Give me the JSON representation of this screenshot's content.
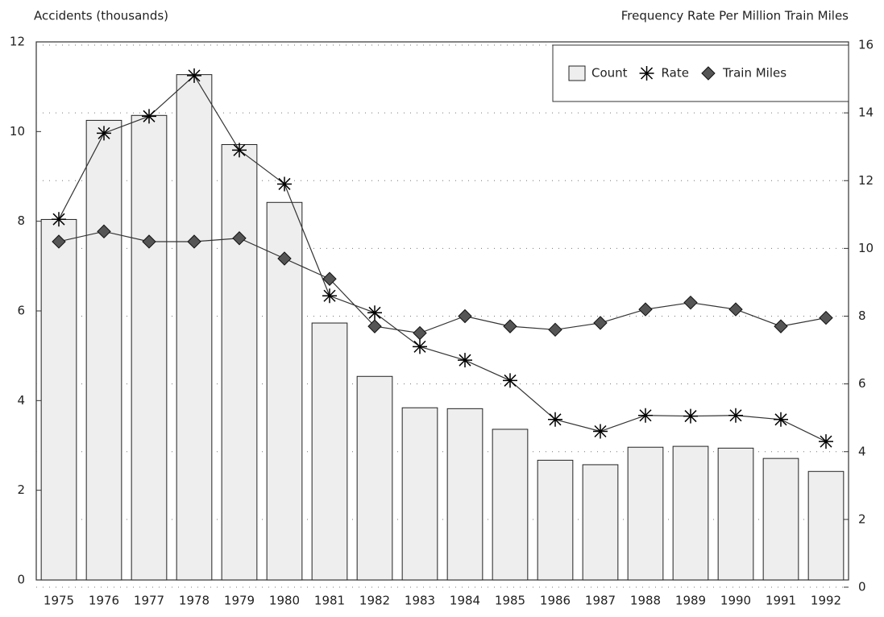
{
  "chart_data": {
    "type": "bar_line",
    "y_label": "Accidents (thousands)",
    "y2_label": "Frequency Rate Per Million Train Miles",
    "categories": [
      "1975",
      "1976",
      "1977",
      "1978",
      "1979",
      "1980",
      "1981",
      "1982",
      "1983",
      "1984",
      "1985",
      "1986",
      "1987",
      "1988",
      "1989",
      "1990",
      "1991",
      "1992"
    ],
    "series": [
      {
        "name": "Count",
        "type": "bar",
        "color": "#eeeeee",
        "values": [
          8.04,
          10.25,
          10.36,
          11.27,
          9.71,
          8.42,
          5.73,
          4.54,
          3.84,
          3.82,
          3.36,
          2.67,
          2.57,
          2.96,
          2.98,
          2.94,
          2.71,
          2.42
        ]
      },
      {
        "name": "Rate",
        "type": "line",
        "marker": "star",
        "axis": "y2",
        "color": "#000000",
        "values": [
          10.86,
          13.4,
          13.9,
          15.1,
          12.9,
          11.9,
          8.6,
          8.1,
          7.1,
          6.7,
          6.1,
          4.95,
          4.6,
          5.07,
          5.05,
          5.07,
          4.95,
          4.3
        ]
      },
      {
        "name": "Train Miles",
        "type": "line",
        "marker": "diamond",
        "axis": "y2",
        "color": "#555555",
        "values": [
          10.2,
          10.5,
          10.2,
          10.2,
          10.3,
          9.7,
          9.1,
          7.7,
          7.5,
          8.0,
          7.7,
          7.6,
          7.8,
          8.2,
          8.4,
          8.2,
          7.7,
          7.95
        ]
      }
    ],
    "ylim": [
      0,
      12
    ],
    "yticks": [
      0,
      2,
      4,
      6,
      8,
      10,
      12
    ],
    "y2lim": [
      0,
      16
    ],
    "y2ticks": [
      0,
      2,
      4,
      6,
      8,
      10,
      12,
      14,
      16
    ],
    "grid": true,
    "legend": "top-right"
  }
}
